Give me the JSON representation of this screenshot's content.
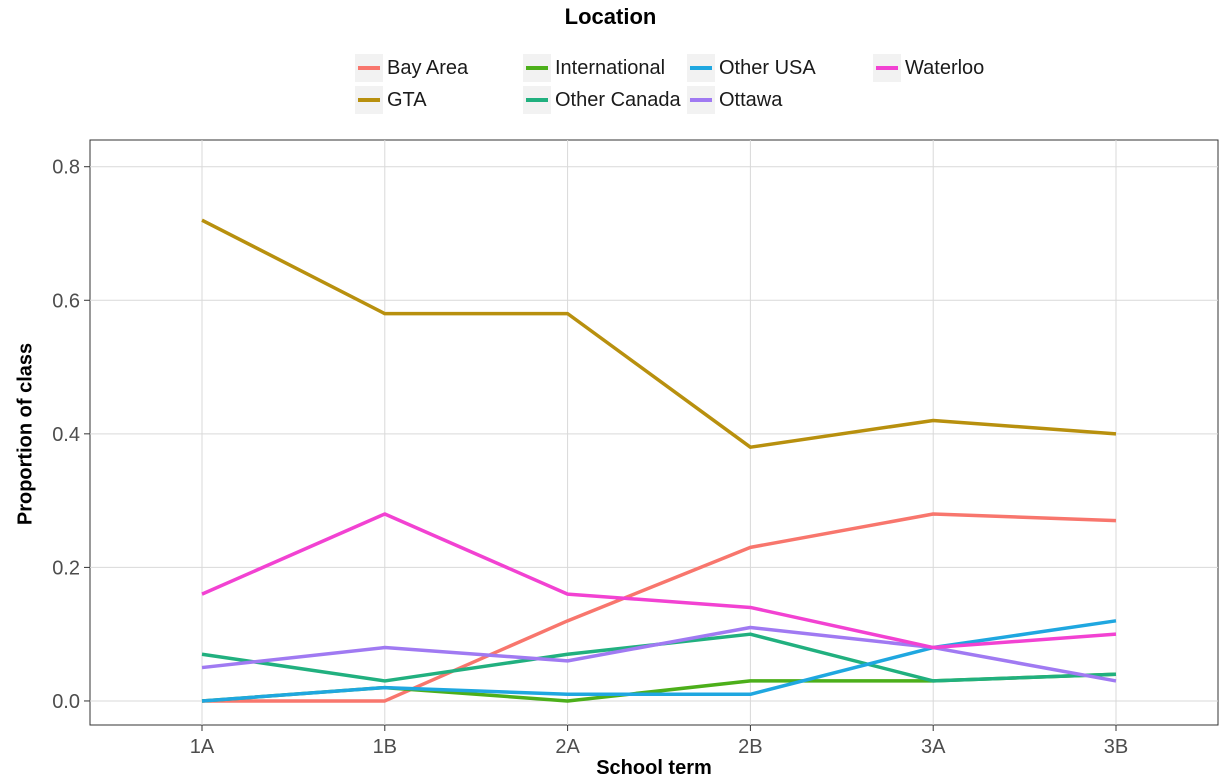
{
  "chart_data": {
    "type": "line",
    "legend_title": "Location",
    "legend_position": "top",
    "xlabel": "School term",
    "ylabel": "Proportion of class",
    "categories": [
      "1A",
      "1B",
      "2A",
      "2B",
      "3A",
      "3B"
    ],
    "ylim": [
      -0.036,
      0.84
    ],
    "yticks": [
      0.0,
      0.2,
      0.4,
      0.6,
      0.8
    ],
    "ytick_labels": [
      "0.0",
      "0.2",
      "0.4",
      "0.6",
      "0.8"
    ],
    "grid": true,
    "series": [
      {
        "name": "Bay Area",
        "color": "#F8766D",
        "values": [
          0.0,
          0.0,
          0.12,
          0.23,
          0.28,
          0.27
        ]
      },
      {
        "name": "GTA",
        "color": "#B8900E",
        "values": [
          0.72,
          0.58,
          0.58,
          0.38,
          0.42,
          0.4
        ]
      },
      {
        "name": "International",
        "color": "#4CAF1A",
        "values": [
          0.0,
          0.02,
          0.0,
          0.03,
          0.03,
          0.04
        ]
      },
      {
        "name": "Other Canada",
        "color": "#21B07F",
        "values": [
          0.07,
          0.03,
          0.07,
          0.1,
          0.03,
          0.04
        ]
      },
      {
        "name": "Other USA",
        "color": "#1FA7E0",
        "values": [
          0.0,
          0.02,
          0.01,
          0.01,
          0.08,
          0.12
        ]
      },
      {
        "name": "Ottawa",
        "color": "#A07AF2",
        "values": [
          0.05,
          0.08,
          0.06,
          0.11,
          0.08,
          0.03
        ]
      },
      {
        "name": "Waterloo",
        "color": "#F242D2",
        "values": [
          0.16,
          0.28,
          0.16,
          0.14,
          0.08,
          0.1
        ]
      }
    ]
  }
}
